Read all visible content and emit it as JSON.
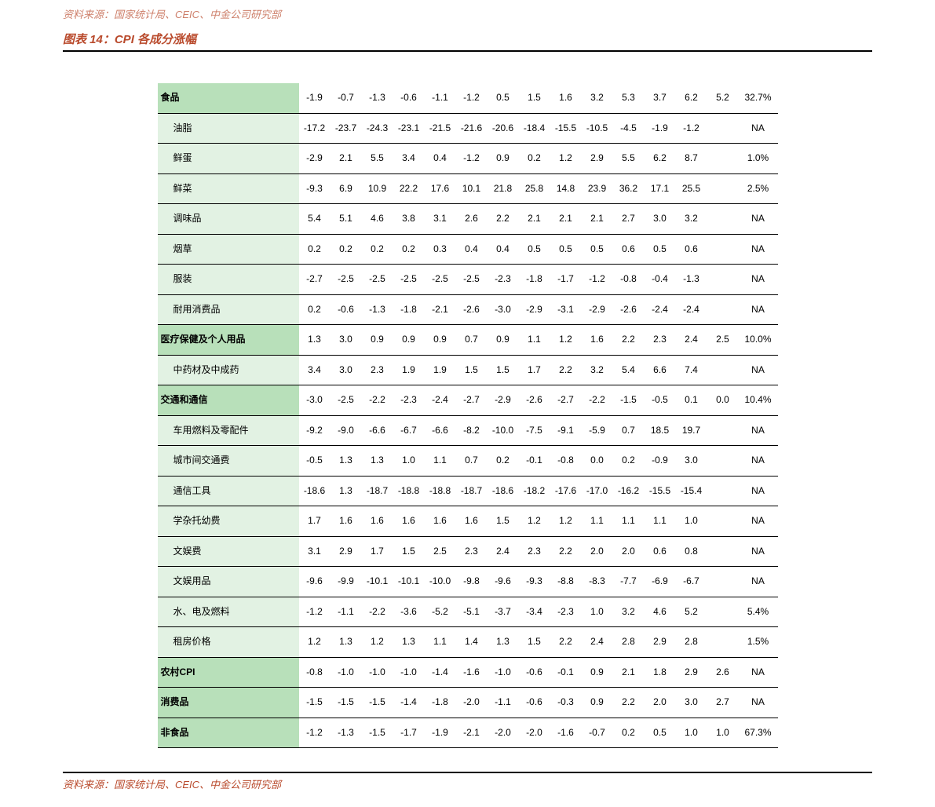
{
  "source_top": "资料来源：国家统计局、CEIC、中金公司研究部",
  "title": "图表 14：CPI 各成分涨幅",
  "source_bottom": "资料来源：国家统计局、CEIC、中金公司研究部",
  "colors": {
    "accent_text": "#b94a2c",
    "band_dark": "#b8e0ba",
    "band_light": "#e2f2e3",
    "text": "#000000"
  },
  "num_value_cols": 13,
  "rows": [
    {
      "label": "食品",
      "indent": false,
      "values": [
        "-1.9",
        "-0.7",
        "-1.3",
        "-0.6",
        "-1.1",
        "-1.2",
        "0.5",
        "1.5",
        "1.6",
        "3.2",
        "5.3",
        "3.7",
        "6.2",
        "5.2",
        "32.7%"
      ],
      "band": "dark"
    },
    {
      "label": "油脂",
      "indent": true,
      "values": [
        "-17.2",
        "-23.7",
        "-24.3",
        "-23.1",
        "-21.5",
        "-21.6",
        "-20.6",
        "-18.4",
        "-15.5",
        "-10.5",
        "-4.5",
        "-1.9",
        "-1.2",
        "",
        "NA"
      ],
      "band": "light"
    },
    {
      "label": "鲜蛋",
      "indent": true,
      "values": [
        "-2.9",
        "2.1",
        "5.5",
        "3.4",
        "0.4",
        "-1.2",
        "0.9",
        "0.2",
        "1.2",
        "2.9",
        "5.5",
        "6.2",
        "8.7",
        "",
        "1.0%"
      ],
      "band": "light"
    },
    {
      "label": "鲜菜",
      "indent": true,
      "values": [
        "-9.3",
        "6.9",
        "10.9",
        "22.2",
        "17.6",
        "10.1",
        "21.8",
        "25.8",
        "14.8",
        "23.9",
        "36.2",
        "17.1",
        "25.5",
        "",
        "2.5%"
      ],
      "band": "light"
    },
    {
      "label": "调味品",
      "indent": true,
      "values": [
        "5.4",
        "5.1",
        "4.6",
        "3.8",
        "3.1",
        "2.6",
        "2.2",
        "2.1",
        "2.1",
        "2.1",
        "2.7",
        "3.0",
        "3.2",
        "",
        "NA"
      ],
      "band": "light"
    },
    {
      "label": "烟草",
      "indent": true,
      "values": [
        "0.2",
        "0.2",
        "0.2",
        "0.2",
        "0.3",
        "0.4",
        "0.4",
        "0.5",
        "0.5",
        "0.5",
        "0.6",
        "0.5",
        "0.6",
        "",
        "NA"
      ],
      "band": "light"
    },
    {
      "label": "服装",
      "indent": true,
      "values": [
        "-2.7",
        "-2.5",
        "-2.5",
        "-2.5",
        "-2.5",
        "-2.5",
        "-2.3",
        "-1.8",
        "-1.7",
        "-1.2",
        "-0.8",
        "-0.4",
        "-1.3",
        "",
        "NA"
      ],
      "band": "light"
    },
    {
      "label": "耐用消费品",
      "indent": true,
      "values": [
        "0.2",
        "-0.6",
        "-1.3",
        "-1.8",
        "-2.1",
        "-2.6",
        "-3.0",
        "-2.9",
        "-3.1",
        "-2.9",
        "-2.6",
        "-2.4",
        "-2.4",
        "",
        "NA"
      ],
      "band": "light"
    },
    {
      "label": "医疗保健及个人用品",
      "indent": false,
      "values": [
        "1.3",
        "3.0",
        "0.9",
        "0.9",
        "0.9",
        "0.7",
        "0.9",
        "1.1",
        "1.2",
        "1.6",
        "2.2",
        "2.3",
        "2.4",
        "2.5",
        "10.0%"
      ],
      "band": "dark"
    },
    {
      "label": "中药材及中成药",
      "indent": true,
      "values": [
        "3.4",
        "3.0",
        "2.3",
        "1.9",
        "1.9",
        "1.5",
        "1.5",
        "1.7",
        "2.2",
        "3.2",
        "5.4",
        "6.6",
        "7.4",
        "",
        "NA"
      ],
      "band": "light"
    },
    {
      "label": "交通和通信",
      "indent": false,
      "values": [
        "-3.0",
        "-2.5",
        "-2.2",
        "-2.3",
        "-2.4",
        "-2.7",
        "-2.9",
        "-2.6",
        "-2.7",
        "-2.2",
        "-1.5",
        "-0.5",
        "0.1",
        "0.0",
        "10.4%"
      ],
      "band": "dark"
    },
    {
      "label": "车用燃料及零配件",
      "indent": true,
      "values": [
        "-9.2",
        "-9.0",
        "-6.6",
        "-6.7",
        "-6.6",
        "-8.2",
        "-10.0",
        "-7.5",
        "-9.1",
        "-5.9",
        "0.7",
        "18.5",
        "19.7",
        "",
        "NA"
      ],
      "band": "light"
    },
    {
      "label": "城市间交通费",
      "indent": true,
      "values": [
        "-0.5",
        "1.3",
        "1.3",
        "1.0",
        "1.1",
        "0.7",
        "0.2",
        "-0.1",
        "-0.8",
        "0.0",
        "0.2",
        "-0.9",
        "3.0",
        "",
        "NA"
      ],
      "band": "light"
    },
    {
      "label": "通信工具",
      "indent": true,
      "values": [
        "-18.6",
        "1.3",
        "-18.7",
        "-18.8",
        "-18.8",
        "-18.7",
        "-18.6",
        "-18.2",
        "-17.6",
        "-17.0",
        "-16.2",
        "-15.5",
        "-15.4",
        "",
        "NA"
      ],
      "band": "light"
    },
    {
      "label": "学杂托幼费",
      "indent": true,
      "values": [
        "1.7",
        "1.6",
        "1.6",
        "1.6",
        "1.6",
        "1.6",
        "1.5",
        "1.2",
        "1.2",
        "1.1",
        "1.1",
        "1.1",
        "1.0",
        "",
        "NA"
      ],
      "band": "light"
    },
    {
      "label": "文娱费",
      "indent": true,
      "values": [
        "3.1",
        "2.9",
        "1.7",
        "1.5",
        "2.5",
        "2.3",
        "2.4",
        "2.3",
        "2.2",
        "2.0",
        "2.0",
        "0.6",
        "0.8",
        "",
        "NA"
      ],
      "band": "light"
    },
    {
      "label": "文娱用品",
      "indent": true,
      "values": [
        "-9.6",
        "-9.9",
        "-10.1",
        "-10.1",
        "-10.0",
        "-9.8",
        "-9.6",
        "-9.3",
        "-8.8",
        "-8.3",
        "-7.7",
        "-6.9",
        "-6.7",
        "",
        "NA"
      ],
      "band": "light"
    },
    {
      "label": "水、电及燃料",
      "indent": true,
      "values": [
        "-1.2",
        "-1.1",
        "-2.2",
        "-3.6",
        "-5.2",
        "-5.1",
        "-3.7",
        "-3.4",
        "-2.3",
        "1.0",
        "3.2",
        "4.6",
        "5.2",
        "",
        "5.4%"
      ],
      "band": "light"
    },
    {
      "label": "租房价格",
      "indent": true,
      "values": [
        "1.2",
        "1.3",
        "1.2",
        "1.3",
        "1.1",
        "1.4",
        "1.3",
        "1.5",
        "2.2",
        "2.4",
        "2.8",
        "2.9",
        "2.8",
        "",
        "1.5%"
      ],
      "band": "light"
    },
    {
      "label": "农村CPI",
      "indent": false,
      "values": [
        "-0.8",
        "-1.0",
        "-1.0",
        "-1.0",
        "-1.4",
        "-1.6",
        "-1.0",
        "-0.6",
        "-0.1",
        "0.9",
        "2.1",
        "1.8",
        "2.9",
        "2.6",
        "NA"
      ],
      "band": "dark"
    },
    {
      "label": "消费品",
      "indent": false,
      "values": [
        "-1.5",
        "-1.5",
        "-1.5",
        "-1.4",
        "-1.8",
        "-2.0",
        "-1.1",
        "-0.6",
        "-0.3",
        "0.9",
        "2.2",
        "2.0",
        "3.0",
        "2.7",
        "NA"
      ],
      "band": "dark"
    },
    {
      "label": "非食品",
      "indent": false,
      "values": [
        "-1.2",
        "-1.3",
        "-1.5",
        "-1.7",
        "-1.9",
        "-2.1",
        "-2.0",
        "-2.0",
        "-1.6",
        "-0.7",
        "0.2",
        "0.5",
        "1.0",
        "1.0",
        "67.3%"
      ],
      "band": "dark"
    }
  ]
}
